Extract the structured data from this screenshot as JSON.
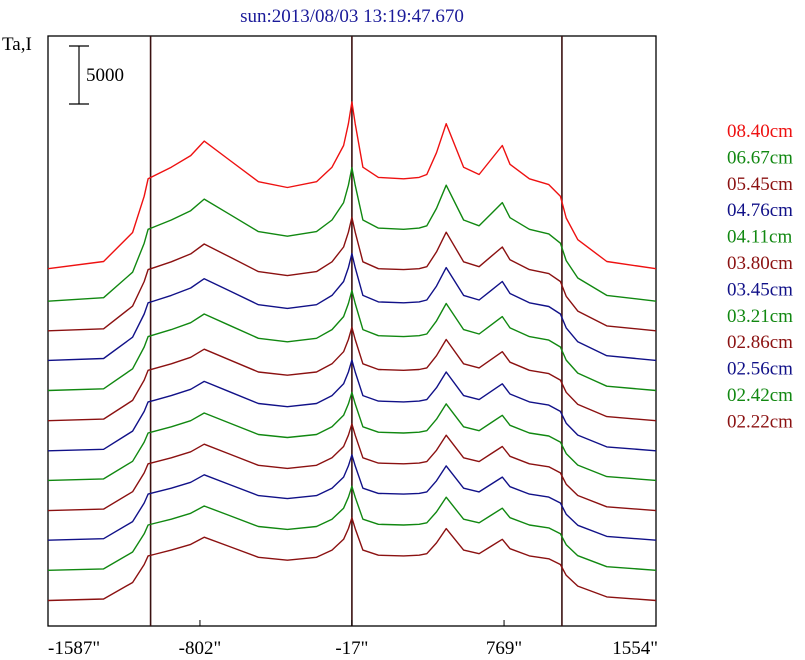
{
  "chart_data": {
    "type": "line",
    "title": "sun:2013/08/03 13:19:47.670",
    "ylabel": "Ta,I",
    "scale_bar_label": "5000",
    "scale_bar_value": 5000,
    "xlim": [
      -1587,
      1554
    ],
    "x_ticks": [
      {
        "value": -1587,
        "label": "-1587\""
      },
      {
        "value": -802,
        "label": "-802\""
      },
      {
        "value": -17,
        "label": "-17\""
      },
      {
        "value": 769,
        "label": "769\""
      },
      {
        "value": 1554,
        "label": "1554\""
      }
    ],
    "vertical_lines": [
      -1057,
      -17,
      1068
    ],
    "grid": false,
    "legend_position": "right",
    "profile_x": [
      -1587,
      -1300,
      -1150,
      -1090,
      -1070,
      -1040,
      -950,
      -850,
      -780,
      -650,
      -500,
      -350,
      -200,
      -120,
      -60,
      -35,
      -17,
      0,
      40,
      120,
      250,
      330,
      370,
      420,
      470,
      560,
      640,
      700,
      760,
      800,
      900,
      1000,
      1060,
      1090,
      1150,
      1300,
      1554
    ],
    "series": [
      {
        "name": "08.40cm",
        "color": "#ee1111",
        "offset": 30800,
        "amp": 1.25,
        "values": [
          0,
          500,
          2500,
          5000,
          6200,
          6400,
          7000,
          7800,
          8800,
          7500,
          6000,
          5600,
          6000,
          7000,
          8500,
          10000,
          11500,
          10000,
          7000,
          6300,
          6200,
          6300,
          6500,
          8000,
          10000,
          7000,
          6500,
          7500,
          8500,
          7200,
          6200,
          5800,
          5000,
          3500,
          2000,
          500,
          0
        ]
      },
      {
        "name": "06.67cm",
        "color": "#118811",
        "offset": 28000,
        "amp": 1.0,
        "values": [
          0,
          300,
          2500,
          5000,
          6200,
          6400,
          7000,
          7800,
          8800,
          7500,
          6000,
          5600,
          6000,
          7000,
          8500,
          10000,
          11500,
          10000,
          7000,
          6300,
          6200,
          6300,
          6500,
          8000,
          10000,
          7000,
          6500,
          7500,
          8500,
          7200,
          6200,
          5800,
          5000,
          3500,
          2000,
          500,
          0
        ]
      },
      {
        "name": "05.45cm",
        "color": "#8b1111",
        "offset": 25450,
        "amp": 0.85,
        "values": [
          0,
          200,
          2500,
          5000,
          6200,
          6400,
          7000,
          7800,
          8800,
          7500,
          6000,
          5600,
          6000,
          7000,
          8500,
          10000,
          11500,
          10000,
          7000,
          6300,
          6200,
          6300,
          6500,
          8000,
          10000,
          7000,
          6500,
          7500,
          8500,
          7200,
          6200,
          5800,
          5000,
          3500,
          2000,
          500,
          0
        ]
      },
      {
        "name": "04.76cm",
        "color": "#111188",
        "offset": 22900,
        "amp": 0.8,
        "values": [
          0,
          200,
          2500,
          5000,
          6200,
          6400,
          7000,
          7800,
          8800,
          7500,
          6000,
          5600,
          6000,
          7000,
          8500,
          10000,
          11500,
          10000,
          7000,
          6300,
          6200,
          6300,
          6500,
          8000,
          10000,
          7000,
          6500,
          7500,
          8500,
          7200,
          6200,
          5800,
          5000,
          3500,
          2000,
          500,
          0
        ]
      },
      {
        "name": "04.11cm",
        "color": "#118811",
        "offset": 20300,
        "amp": 0.75,
        "values": [
          0,
          200,
          2500,
          5000,
          6200,
          6400,
          7000,
          7800,
          8800,
          7500,
          6000,
          5600,
          6000,
          7000,
          8500,
          10000,
          11500,
          10000,
          7000,
          6300,
          6200,
          6300,
          6500,
          8000,
          10000,
          7000,
          6500,
          7500,
          8500,
          7200,
          6200,
          5800,
          5000,
          3500,
          2000,
          500,
          0
        ]
      },
      {
        "name": "03.80cm",
        "color": "#8b1111",
        "offset": 17700,
        "amp": 0.7,
        "values": [
          0,
          200,
          2500,
          5000,
          6200,
          6400,
          7000,
          7800,
          8800,
          7500,
          6000,
          5600,
          6000,
          7000,
          8500,
          10000,
          11500,
          10000,
          7000,
          6300,
          6200,
          6300,
          6500,
          8000,
          10000,
          7000,
          6500,
          7500,
          8500,
          7200,
          6200,
          5800,
          5000,
          3500,
          2000,
          500,
          0
        ]
      },
      {
        "name": "03.45cm",
        "color": "#111188",
        "offset": 15100,
        "amp": 0.68,
        "values": [
          0,
          200,
          2500,
          5000,
          6200,
          6400,
          7000,
          7800,
          8800,
          7500,
          6000,
          5600,
          6000,
          7000,
          8500,
          10000,
          11500,
          10000,
          7000,
          6300,
          6200,
          6300,
          6500,
          8000,
          10000,
          7000,
          6500,
          7500,
          8500,
          7200,
          6200,
          5800,
          5000,
          3500,
          2000,
          500,
          0
        ]
      },
      {
        "name": "03.21cm",
        "color": "#118811",
        "offset": 12550,
        "amp": 0.66,
        "values": [
          0,
          200,
          2500,
          5000,
          6200,
          6400,
          7000,
          7800,
          8800,
          7500,
          6000,
          5600,
          6000,
          7000,
          8500,
          10000,
          11500,
          10000,
          7000,
          6300,
          6200,
          6300,
          6500,
          8000,
          10000,
          7000,
          6500,
          7500,
          8500,
          7200,
          6200,
          5800,
          5000,
          3500,
          2000,
          500,
          0
        ]
      },
      {
        "name": "02.86cm",
        "color": "#8b1111",
        "offset": 9950,
        "amp": 0.65,
        "values": [
          0,
          200,
          2500,
          5000,
          6200,
          6400,
          7000,
          7800,
          8800,
          7500,
          6000,
          5600,
          6000,
          7000,
          8500,
          10000,
          11500,
          10000,
          7000,
          6300,
          6200,
          6300,
          6500,
          8000,
          10000,
          7000,
          6500,
          7500,
          8500,
          7200,
          6200,
          5800,
          5000,
          3500,
          2000,
          500,
          0
        ]
      },
      {
        "name": "02.56cm",
        "color": "#111188",
        "offset": 7400,
        "amp": 0.64,
        "values": [
          0,
          200,
          2500,
          5000,
          6200,
          6400,
          7000,
          7800,
          8800,
          7500,
          6000,
          5600,
          6000,
          7000,
          8500,
          10000,
          11500,
          10000,
          7000,
          6300,
          6200,
          6300,
          6500,
          8000,
          10000,
          7000,
          6500,
          7500,
          8500,
          7200,
          6200,
          5800,
          5000,
          3500,
          2000,
          500,
          0
        ]
      },
      {
        "name": "02.42cm",
        "color": "#118811",
        "offset": 4800,
        "amp": 0.63,
        "values": [
          0,
          200,
          2500,
          5000,
          6200,
          6400,
          7000,
          7800,
          8800,
          7500,
          6000,
          5600,
          6000,
          7000,
          8500,
          10000,
          11500,
          10000,
          7000,
          6300,
          6200,
          6300,
          6500,
          8000,
          10000,
          7000,
          6500,
          7500,
          8500,
          7200,
          6200,
          5800,
          5000,
          3500,
          2000,
          500,
          0
        ]
      },
      {
        "name": "02.22cm",
        "color": "#8b1111",
        "offset": 2200,
        "amp": 0.62,
        "values": [
          0,
          200,
          2500,
          5000,
          6200,
          6400,
          7000,
          7800,
          8800,
          7500,
          6000,
          5600,
          6000,
          7000,
          8500,
          10000,
          11500,
          10000,
          7000,
          6300,
          6200,
          6300,
          6500,
          8000,
          10000,
          7000,
          6500,
          7500,
          8500,
          7200,
          6200,
          5800,
          5000,
          3500,
          2000,
          500,
          0
        ]
      }
    ]
  }
}
